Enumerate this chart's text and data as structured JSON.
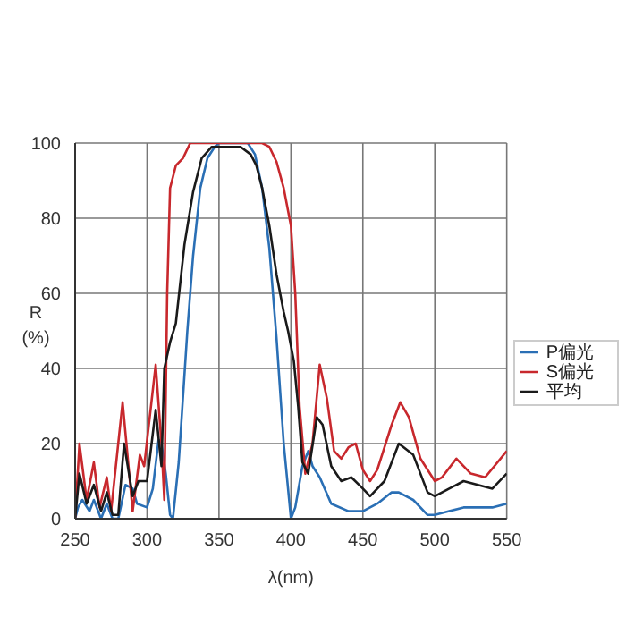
{
  "chart_data": {
    "type": "line",
    "xlabel": "λ(nm)",
    "ylabel": "R (%)",
    "xlim": [
      250,
      550
    ],
    "xticks": [
      250,
      300,
      350,
      400,
      450,
      500,
      550
    ],
    "ylim": [
      0,
      100
    ],
    "yticks": [
      0,
      20,
      40,
      60,
      80,
      100
    ],
    "grid": true,
    "legend": "right",
    "line_style": "solid",
    "marker": "none",
    "series": [
      {
        "name": "P偏光",
        "color": "#2a6fb5",
        "x": [
          250,
          252,
          255,
          260,
          263,
          266,
          268,
          272,
          276,
          280,
          285,
          290,
          293,
          300,
          304,
          308,
          310,
          313,
          316,
          318,
          322,
          328,
          332,
          337,
          342,
          347,
          350,
          370,
          375,
          380,
          385,
          390,
          395,
          400,
          403,
          408,
          412,
          415,
          420,
          428,
          440,
          450,
          460,
          470,
          475,
          485,
          495,
          500,
          510,
          520,
          530,
          540,
          550
        ],
        "values": [
          0,
          3,
          5,
          2,
          5,
          2,
          0,
          4,
          0,
          0,
          9,
          8,
          4,
          3,
          8,
          21,
          20,
          12,
          1,
          0,
          15,
          50,
          70,
          88,
          96,
          99,
          100,
          100,
          97,
          88,
          72,
          48,
          20,
          0,
          3,
          14,
          18,
          14,
          11,
          4,
          2,
          2,
          4,
          7,
          7,
          5,
          1,
          1,
          2,
          3,
          3,
          3,
          4
        ]
      },
      {
        "name": "S偏光",
        "color": "#c8282d",
        "x": [
          250,
          253,
          258,
          263,
          267,
          272,
          275,
          283,
          290,
          295,
          298,
          306,
          310,
          312,
          314,
          316,
          320,
          325,
          330,
          380,
          385,
          390,
          395,
          400,
          403,
          406,
          410,
          415,
          420,
          425,
          430,
          435,
          440,
          445,
          450,
          455,
          460,
          470,
          476,
          482,
          490,
          500,
          505,
          515,
          525,
          535,
          550
        ],
        "values": [
          0,
          20,
          5,
          15,
          3,
          11,
          2,
          31,
          2,
          17,
          14,
          41,
          20,
          5,
          60,
          88,
          94,
          96,
          100,
          100,
          99,
          95,
          88,
          78,
          60,
          30,
          12,
          20,
          41,
          32,
          18,
          16,
          19,
          20,
          13,
          10,
          13,
          25,
          31,
          27,
          16,
          10,
          11,
          16,
          12,
          11,
          18
        ]
      },
      {
        "name": "平均",
        "color": "#1a1a1a",
        "x": [
          250,
          253,
          258,
          263,
          268,
          272,
          276,
          280,
          284,
          290,
          294,
          300,
          306,
          310,
          312,
          316,
          320,
          326,
          332,
          338,
          345,
          365,
          372,
          376,
          380,
          385,
          390,
          395,
          398,
          402,
          405,
          408,
          412,
          418,
          422,
          428,
          435,
          442,
          450,
          455,
          465,
          475,
          485,
          495,
          500,
          510,
          520,
          530,
          540,
          550
        ],
        "values": [
          0,
          12,
          4,
          9,
          2,
          7,
          1,
          1,
          20,
          6,
          10,
          10,
          29,
          14,
          40,
          47,
          52,
          73,
          87,
          96,
          99,
          99,
          97,
          94,
          88,
          78,
          65,
          55,
          50,
          42,
          30,
          15,
          12,
          27,
          25,
          14,
          10,
          11,
          8,
          6,
          10,
          20,
          17,
          7,
          6,
          8,
          10,
          9,
          8,
          12
        ]
      }
    ]
  }
}
